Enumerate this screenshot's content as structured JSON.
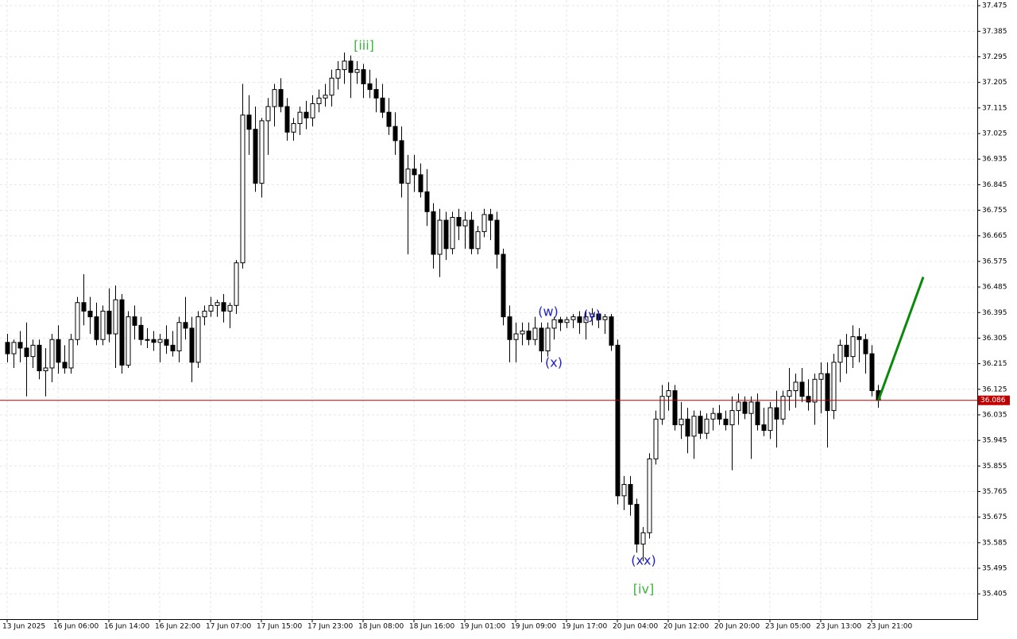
{
  "chart_data": {
    "type": "candlestick",
    "categories": [
      "13 Jun 2025",
      null,
      null,
      null,
      null,
      null,
      null,
      null,
      "16 Jun 06:00",
      null,
      null,
      null,
      null,
      null,
      null,
      null,
      "16 Jun 14:00",
      null,
      null,
      null,
      null,
      null,
      null,
      null,
      "16 Jun 22:00",
      null,
      null,
      null,
      null,
      null,
      null,
      null,
      "17 Jun 07:00",
      null,
      null,
      null,
      null,
      null,
      null,
      null,
      "17 Jun 15:00",
      null,
      null,
      null,
      null,
      null,
      null,
      null,
      "17 Jun 23:00",
      null,
      null,
      null,
      null,
      null,
      null,
      null,
      "18 Jun 08:00",
      null,
      null,
      null,
      null,
      null,
      null,
      null,
      "18 Jun 16:00",
      null,
      null,
      null,
      null,
      null,
      null,
      null,
      "19 Jun 01:00",
      null,
      null,
      null,
      null,
      null,
      null,
      null,
      "19 Jun 09:00",
      null,
      null,
      null,
      null,
      null,
      null,
      null,
      "19 Jun 17:00",
      null,
      null,
      null,
      null,
      null,
      null,
      null,
      "20 Jun 04:00",
      null,
      null,
      null,
      null,
      null,
      null,
      null,
      "20 Jun 12:00",
      null,
      null,
      null,
      null,
      null,
      null,
      null,
      "20 Jun 20:00",
      null,
      null,
      null,
      null,
      null,
      null,
      null,
      "23 Jun 05:00",
      null,
      null,
      null,
      null,
      null,
      null,
      null,
      "23 Jun 13:00",
      null,
      null,
      null,
      null,
      null,
      null,
      null,
      "23 Jun 21:00",
      null
    ],
    "ohlc": [
      [
        36.29,
        36.32,
        36.22,
        36.25
      ],
      [
        36.25,
        36.3,
        36.2,
        36.29
      ],
      [
        36.29,
        36.33,
        36.22,
        36.27
      ],
      [
        36.27,
        36.36,
        36.1,
        36.24
      ],
      [
        36.24,
        36.3,
        36.2,
        36.28
      ],
      [
        36.28,
        36.3,
        36.16,
        36.19
      ],
      [
        36.19,
        36.27,
        36.1,
        36.2
      ],
      [
        36.2,
        36.32,
        36.15,
        36.3
      ],
      [
        36.3,
        36.35,
        36.18,
        36.22
      ],
      [
        36.22,
        36.28,
        36.18,
        36.2
      ],
      [
        36.2,
        36.32,
        36.18,
        36.3
      ],
      [
        36.3,
        36.45,
        36.28,
        36.43
      ],
      [
        36.43,
        36.53,
        36.35,
        36.4
      ],
      [
        36.4,
        36.45,
        36.32,
        36.38
      ],
      [
        36.38,
        36.43,
        36.28,
        36.3
      ],
      [
        36.3,
        36.42,
        36.28,
        36.4
      ],
      [
        36.4,
        36.48,
        36.29,
        36.32
      ],
      [
        36.32,
        36.49,
        36.2,
        36.44
      ],
      [
        36.44,
        36.46,
        36.18,
        36.21
      ],
      [
        36.21,
        36.4,
        36.2,
        36.38
      ],
      [
        36.38,
        36.42,
        36.3,
        36.35
      ],
      [
        36.35,
        36.38,
        36.28,
        36.3
      ],
      [
        36.3,
        36.34,
        36.27,
        36.3
      ],
      [
        36.3,
        36.33,
        36.26,
        36.29
      ],
      [
        36.29,
        36.32,
        36.22,
        36.3
      ],
      [
        36.3,
        36.35,
        36.25,
        36.28
      ],
      [
        36.28,
        36.33,
        36.24,
        36.26
      ],
      [
        36.26,
        36.38,
        36.22,
        36.36
      ],
      [
        36.36,
        36.45,
        36.3,
        36.34
      ],
      [
        36.34,
        36.38,
        36.15,
        36.22
      ],
      [
        36.22,
        36.4,
        36.2,
        36.38
      ],
      [
        36.38,
        36.42,
        36.35,
        36.4
      ],
      [
        36.4,
        36.45,
        36.38,
        36.42
      ],
      [
        36.42,
        36.44,
        36.38,
        36.43
      ],
      [
        36.43,
        36.46,
        36.36,
        36.4
      ],
      [
        36.4,
        36.43,
        36.34,
        36.42
      ],
      [
        36.42,
        36.58,
        36.39,
        36.57
      ],
      [
        36.57,
        37.2,
        36.55,
        37.09
      ],
      [
        37.09,
        37.16,
        36.95,
        37.04
      ],
      [
        37.04,
        37.12,
        36.82,
        36.85
      ],
      [
        36.85,
        37.08,
        36.8,
        37.07
      ],
      [
        37.07,
        37.15,
        36.95,
        37.12
      ],
      [
        37.12,
        37.2,
        37.05,
        37.18
      ],
      [
        37.18,
        37.22,
        37.1,
        37.12
      ],
      [
        37.12,
        37.15,
        37.0,
        37.03
      ],
      [
        37.03,
        37.08,
        37.0,
        37.06
      ],
      [
        37.06,
        37.12,
        37.02,
        37.1
      ],
      [
        37.1,
        37.14,
        37.04,
        37.08
      ],
      [
        37.08,
        37.16,
        37.05,
        37.13
      ],
      [
        37.13,
        37.18,
        37.1,
        37.15
      ],
      [
        37.15,
        37.2,
        37.12,
        37.16
      ],
      [
        37.16,
        37.25,
        37.12,
        37.22
      ],
      [
        37.22,
        37.28,
        37.18,
        37.25
      ],
      [
        37.25,
        37.31,
        37.2,
        37.28
      ],
      [
        37.28,
        37.3,
        37.15,
        37.24
      ],
      [
        37.24,
        37.28,
        37.2,
        37.25
      ],
      [
        37.25,
        37.27,
        37.15,
        37.2
      ],
      [
        37.2,
        37.25,
        37.15,
        37.18
      ],
      [
        37.18,
        37.22,
        37.1,
        37.15
      ],
      [
        37.15,
        37.2,
        37.08,
        37.1
      ],
      [
        37.1,
        37.15,
        37.02,
        37.05
      ],
      [
        37.05,
        37.1,
        36.95,
        37.0
      ],
      [
        37.0,
        37.05,
        36.8,
        36.85
      ],
      [
        36.85,
        36.95,
        36.6,
        36.9
      ],
      [
        36.9,
        36.95,
        36.82,
        36.88
      ],
      [
        36.88,
        36.92,
        36.8,
        36.82
      ],
      [
        36.82,
        36.9,
        36.7,
        36.75
      ],
      [
        36.75,
        36.78,
        36.55,
        36.6
      ],
      [
        36.6,
        36.76,
        36.52,
        36.72
      ],
      [
        36.72,
        36.75,
        36.58,
        36.62
      ],
      [
        36.62,
        36.75,
        36.6,
        36.73
      ],
      [
        36.73,
        36.76,
        36.65,
        36.7
      ],
      [
        36.7,
        36.75,
        36.62,
        36.72
      ],
      [
        36.72,
        36.75,
        36.6,
        36.62
      ],
      [
        36.62,
        36.7,
        36.6,
        36.68
      ],
      [
        36.68,
        36.76,
        36.66,
        36.74
      ],
      [
        36.74,
        36.76,
        36.65,
        36.72
      ],
      [
        36.72,
        36.75,
        36.55,
        36.6
      ],
      [
        36.6,
        36.62,
        36.35,
        36.38
      ],
      [
        36.38,
        36.42,
        36.22,
        36.3
      ],
      [
        36.3,
        36.36,
        36.22,
        36.32
      ],
      [
        36.32,
        36.36,
        36.28,
        36.33
      ],
      [
        36.33,
        36.36,
        36.28,
        36.3
      ],
      [
        36.3,
        36.38,
        36.28,
        36.34
      ],
      [
        36.34,
        36.36,
        36.22,
        36.26
      ],
      [
        36.26,
        36.36,
        36.24,
        36.34
      ],
      [
        36.34,
        36.38,
        36.3,
        36.37
      ],
      [
        36.37,
        36.38,
        36.33,
        36.36
      ],
      [
        36.36,
        36.38,
        36.34,
        36.37
      ],
      [
        36.37,
        36.39,
        36.34,
        36.38
      ],
      [
        36.38,
        36.4,
        36.32,
        36.36
      ],
      [
        36.36,
        36.4,
        36.3,
        36.38
      ],
      [
        36.38,
        36.41,
        36.35,
        36.39
      ],
      [
        36.39,
        36.4,
        36.34,
        36.37
      ],
      [
        36.37,
        36.39,
        36.32,
        36.38
      ],
      [
        36.38,
        36.39,
        36.26,
        36.28
      ],
      [
        36.28,
        36.3,
        35.72,
        35.75
      ],
      [
        35.75,
        35.82,
        35.7,
        35.79
      ],
      [
        35.79,
        35.82,
        35.68,
        35.72
      ],
      [
        35.72,
        35.74,
        35.55,
        35.58
      ],
      [
        35.58,
        35.64,
        35.52,
        35.62
      ],
      [
        35.62,
        35.9,
        35.6,
        35.88
      ],
      [
        35.88,
        36.05,
        35.86,
        36.02
      ],
      [
        36.02,
        36.14,
        36.0,
        36.1
      ],
      [
        36.1,
        36.15,
        36.05,
        36.12
      ],
      [
        36.12,
        36.14,
        35.98,
        36.0
      ],
      [
        36.0,
        36.08,
        35.95,
        36.02
      ],
      [
        36.02,
        36.06,
        35.9,
        35.96
      ],
      [
        35.96,
        36.05,
        35.88,
        36.03
      ],
      [
        36.03,
        36.05,
        35.95,
        35.97
      ],
      [
        35.97,
        36.04,
        35.95,
        36.02
      ],
      [
        36.02,
        36.06,
        35.98,
        36.04
      ],
      [
        36.04,
        36.07,
        36.0,
        36.02
      ],
      [
        36.02,
        36.05,
        35.98,
        36.0
      ],
      [
        36.0,
        36.1,
        35.84,
        36.05
      ],
      [
        36.05,
        36.11,
        36.0,
        36.08
      ],
      [
        36.08,
        36.1,
        36.02,
        36.04
      ],
      [
        36.04,
        36.1,
        35.88,
        36.08
      ],
      [
        36.08,
        36.11,
        35.98,
        36.0
      ],
      [
        36.0,
        36.06,
        35.96,
        35.98
      ],
      [
        35.98,
        36.08,
        35.95,
        36.06
      ],
      [
        36.06,
        36.12,
        35.92,
        36.02
      ],
      [
        36.02,
        36.12,
        36.0,
        36.1
      ],
      [
        36.1,
        36.2,
        36.05,
        36.12
      ],
      [
        36.12,
        36.18,
        36.06,
        36.15
      ],
      [
        36.15,
        36.2,
        36.08,
        36.1
      ],
      [
        36.1,
        36.16,
        36.05,
        36.08
      ],
      [
        36.08,
        36.18,
        36.0,
        36.16
      ],
      [
        36.16,
        36.22,
        36.04,
        36.18
      ],
      [
        36.18,
        36.22,
        35.92,
        36.05
      ],
      [
        36.05,
        36.25,
        36.02,
        36.22
      ],
      [
        36.22,
        36.3,
        36.15,
        36.28
      ],
      [
        36.28,
        36.32,
        36.18,
        36.24
      ],
      [
        36.24,
        36.35,
        36.2,
        36.31
      ],
      [
        36.31,
        36.34,
        36.22,
        36.3
      ],
      [
        36.3,
        36.32,
        36.18,
        36.25
      ],
      [
        36.25,
        36.28,
        36.1,
        36.12
      ],
      [
        36.12,
        36.14,
        36.06,
        36.086
      ]
    ],
    "up_color": "#ffffff",
    "down_color": "#000000",
    "ylim": [
      35.316,
      37.495
    ],
    "yticks": [
      37.475,
      37.385,
      37.295,
      37.205,
      37.115,
      37.025,
      36.935,
      36.845,
      36.755,
      36.665,
      36.575,
      36.485,
      36.395,
      36.305,
      36.215,
      36.125,
      36.035,
      35.945,
      35.855,
      35.765,
      35.675,
      35.585,
      35.495,
      35.405
    ],
    "grid": true,
    "current_price": 36.086,
    "current_price_color": "#c00000",
    "projection": {
      "values": [
        36.086,
        36.52
      ],
      "color": "#0a8a0a"
    },
    "annotations": [
      {
        "text": "[iii]",
        "color": "#3cb43c"
      },
      {
        "text": "(w)",
        "color": "#2020c8"
      },
      {
        "text": "(x)",
        "color": "#2020c8"
      },
      {
        "text": "(y)",
        "color": "#2020c8"
      },
      {
        "text": "(xx)",
        "color": "#2020c8"
      },
      {
        "text": "[iv]",
        "color": "#3cb43c"
      }
    ]
  }
}
